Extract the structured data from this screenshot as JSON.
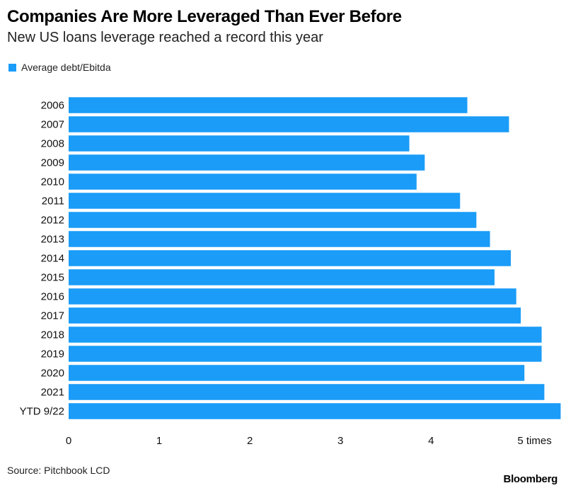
{
  "chart_data": {
    "type": "bar",
    "orientation": "horizontal",
    "title": "Companies Are More Leveraged Than Ever Before",
    "subtitle": "New US loans leverage reached a record this year",
    "categories": [
      "2006",
      "2007",
      "2008",
      "2009",
      "2010",
      "2011",
      "2012",
      "2013",
      "2014",
      "2015",
      "2016",
      "2017",
      "2018",
      "2019",
      "2020",
      "2021",
      "YTD 9/22"
    ],
    "series": [
      {
        "name": "Average debt/Ebitda",
        "color": "#1a9cf8",
        "values": [
          4.4,
          4.86,
          3.76,
          3.93,
          3.84,
          4.32,
          4.5,
          4.65,
          4.88,
          4.7,
          4.94,
          4.99,
          5.22,
          5.22,
          5.03,
          5.25,
          5.43
        ]
      }
    ],
    "xlim": [
      0,
      5.45
    ],
    "x_ticks": [
      0,
      1,
      2,
      3,
      4,
      5
    ],
    "x_tick_labels": [
      "0",
      "1",
      "2",
      "3",
      "4",
      "5 times"
    ],
    "xlabel": "",
    "ylabel": "",
    "grid": false,
    "legend_position": "top-left"
  },
  "footer": {
    "source": "Source: Pitchbook LCD",
    "brand": "Bloomberg"
  }
}
